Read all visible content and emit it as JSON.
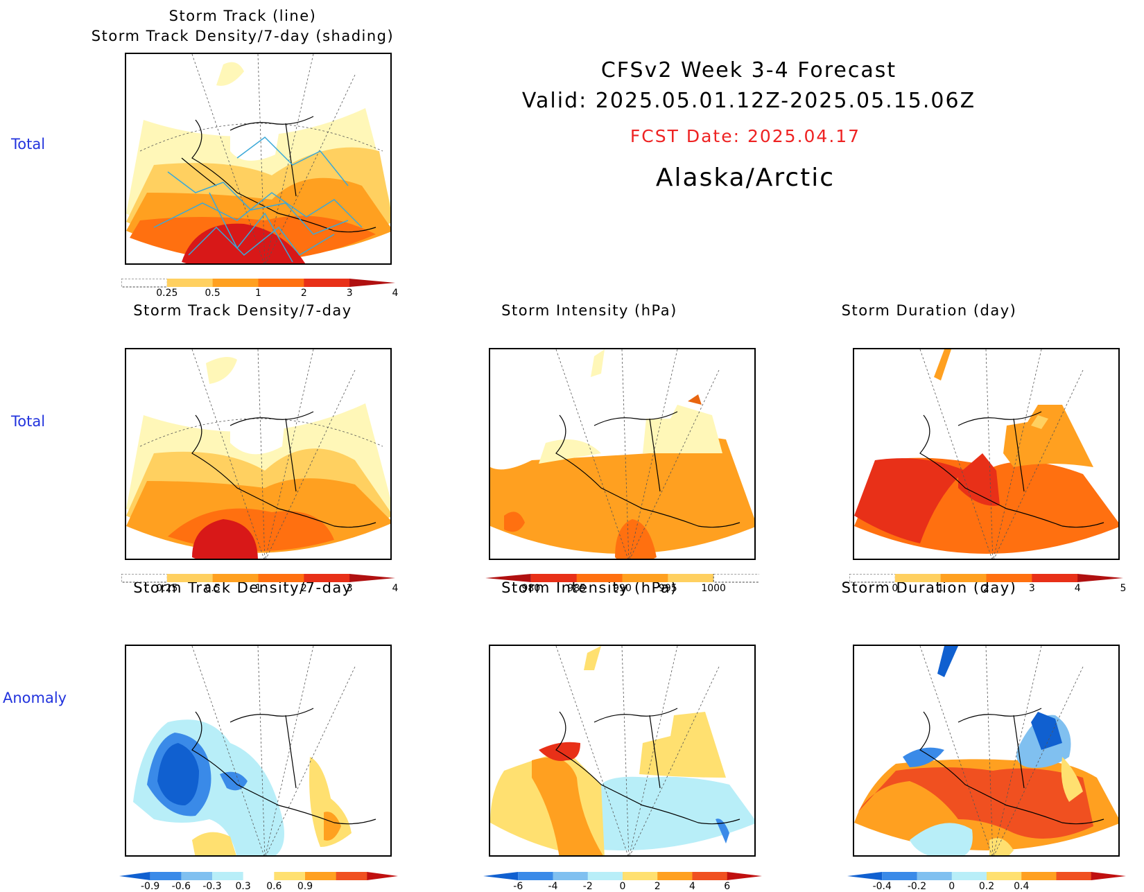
{
  "header": {
    "line1": "CFSv2 Week 3-4 Forecast",
    "line2": "Valid: 2025.05.01.12Z-2025.05.15.06Z",
    "fcst": "FCST Date: 2025.04.17",
    "region": "Alaska/Arctic",
    "fcst_color": "#ee2222"
  },
  "row_labels": {
    "r1": "Total",
    "r2": "Total",
    "r3": "Anomaly"
  },
  "panels": {
    "p1": {
      "title_a": "Storm Track (line)",
      "title_b": "Storm Track Density/7-day (shading)"
    },
    "p2": {
      "title": "Storm Track Density/7-day"
    },
    "p3": {
      "title": "Storm Intensity (hPa)"
    },
    "p4": {
      "title": "Storm Duration (day)"
    },
    "p5": {
      "title": "Storm Track Density/7-day"
    },
    "p6": {
      "title": "Storm Intensity (hPa)"
    },
    "p7": {
      "title": "Storm Duration (day)"
    }
  },
  "colorbars": {
    "density": {
      "ticks": [
        "0.25",
        "0.5",
        "1",
        "2",
        "3",
        "4"
      ],
      "colors": [
        "#fff7b8",
        "#ffd060",
        "#ffa020",
        "#ff7010",
        "#e83018",
        "#b01010"
      ]
    },
    "intensity": {
      "ticks": [
        "980",
        "985",
        "990",
        "995",
        "1000"
      ],
      "colors": [
        "#b01010",
        "#e83018",
        "#ff7010",
        "#ffa020",
        "#ffd060",
        "#fff7b8"
      ]
    },
    "duration": {
      "ticks": [
        "0",
        "1",
        "2",
        "3",
        "4",
        "5"
      ],
      "colors": [
        "#fff7b8",
        "#ffd060",
        "#ffa020",
        "#ff7010",
        "#e83018",
        "#b01010"
      ]
    },
    "density_anom": {
      "ticks": [
        "-0.9",
        "-0.6",
        "-0.3",
        "0.3",
        "0.6",
        "0.9"
      ],
      "colors": [
        "#1060d0",
        "#3a8ae8",
        "#80c0f0",
        "#b8eef8",
        "#ffffff",
        "#ffe070",
        "#ffa020",
        "#f05020",
        "#c01010"
      ]
    },
    "intensity_anom": {
      "ticks": [
        "-6",
        "-4",
        "-2",
        "0",
        "2",
        "4",
        "6"
      ],
      "colors": [
        "#1060d0",
        "#3a8ae8",
        "#80c0f0",
        "#b8eef8",
        "#ffe070",
        "#ffa020",
        "#f05020",
        "#c01010"
      ]
    },
    "duration_anom": {
      "ticks": [
        "-0.4",
        "-0.2",
        "0",
        "0.2",
        "0.4"
      ],
      "colors": [
        "#1060d0",
        "#3a8ae8",
        "#80c0f0",
        "#b8eef8",
        "#ffe070",
        "#ffa020",
        "#f05020",
        "#c01010"
      ]
    }
  },
  "colors": {
    "track_line": "#3aa8d8",
    "row_label": "#2233dd"
  }
}
